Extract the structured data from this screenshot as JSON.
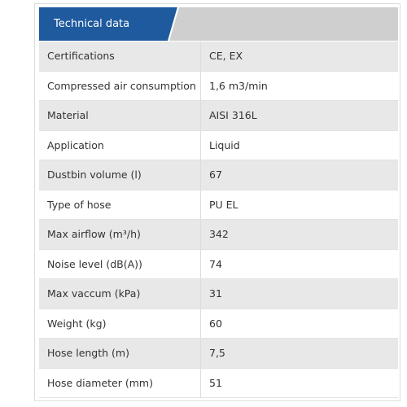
{
  "header": {
    "title": "Technical data"
  },
  "table": {
    "rows": [
      [
        "Certifications",
        "CE, EX"
      ],
      [
        "Compressed air consumption",
        "1,6 m3/min"
      ],
      [
        "Material",
        "AISI 316L"
      ],
      [
        "Application",
        "Liquid"
      ],
      [
        "Dustbin volume (l)",
        "67"
      ],
      [
        "Type of hose",
        "PU EL"
      ],
      [
        "Max airflow (m³/h)",
        "342"
      ],
      [
        "Noise level (dB(A))",
        "74"
      ],
      [
        "Max vaccum (kPa)",
        "31"
      ],
      [
        "Weight (kg)",
        "60"
      ],
      [
        "Hose length (m)",
        "7,5"
      ],
      [
        "Hose diameter (mm)",
        "51"
      ]
    ]
  }
}
